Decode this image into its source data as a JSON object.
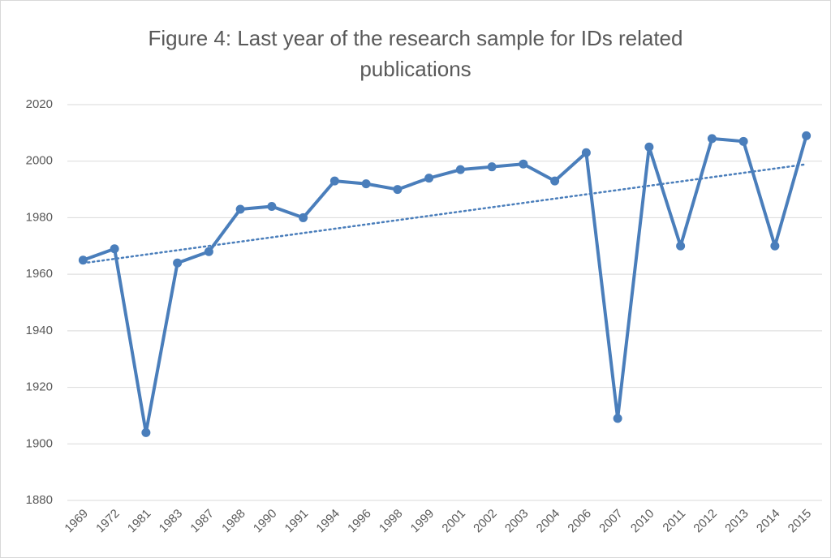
{
  "chart_data": {
    "type": "line",
    "title": "Figure 4: Last year of the research sample for IDs related publications",
    "categories": [
      "1969",
      "1972",
      "1981",
      "1983",
      "1987",
      "1988",
      "1990",
      "1991",
      "1994",
      "1996",
      "1998",
      "1999",
      "2001",
      "2002",
      "2003",
      "2004",
      "2006",
      "2007",
      "2010",
      "2011",
      "2012",
      "2013",
      "2014",
      "2015"
    ],
    "series": [
      {
        "color": "#4a7ebb",
        "values": [
          1965,
          1969,
          1904,
          1964,
          1968,
          1983,
          1984,
          1980,
          1993,
          1992,
          1990,
          1994,
          1997,
          1998,
          1999,
          1993,
          2003,
          1909,
          2005,
          1970,
          2008,
          2007,
          1970,
          2009
        ]
      }
    ],
    "ylim": [
      1880,
      2020
    ],
    "yticks": [
      1880,
      1900,
      1920,
      1940,
      1960,
      1980,
      2000,
      2020
    ],
    "grid": true,
    "trendline": "linear"
  }
}
